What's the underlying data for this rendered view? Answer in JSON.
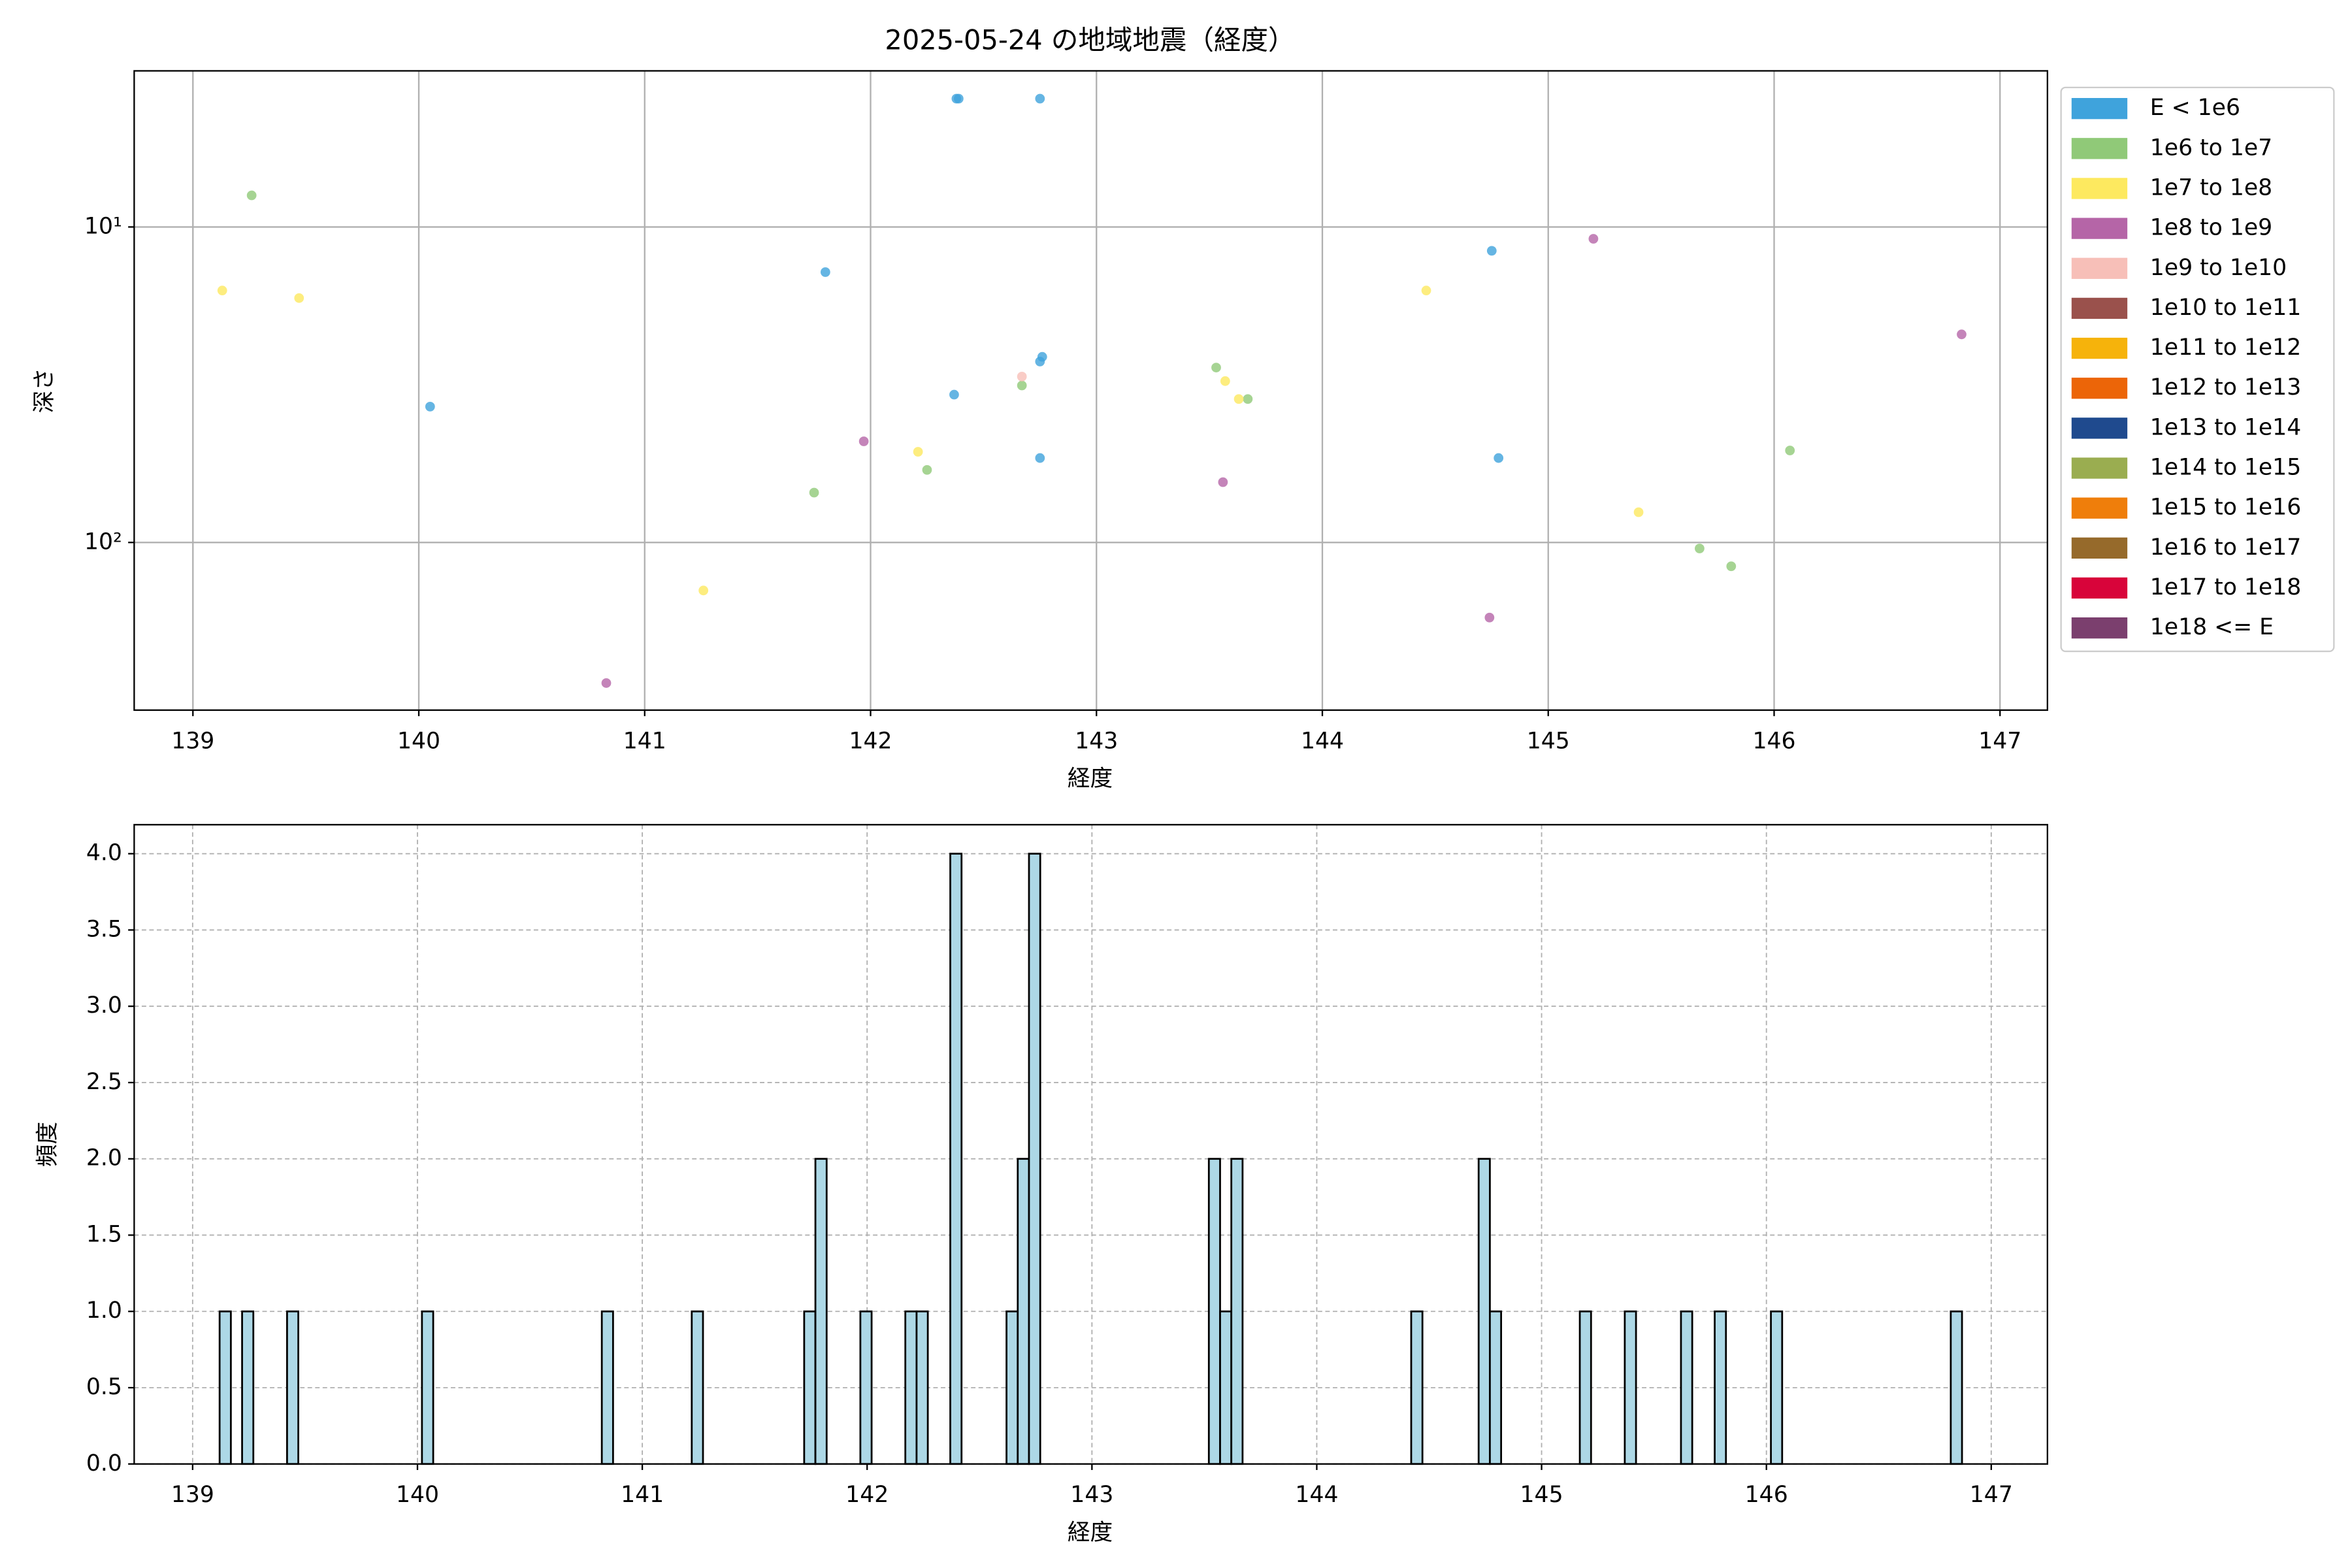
{
  "chart_data": [
    {
      "type": "scatter",
      "title": "2025-05-24 の地域地震（経度）",
      "x_label": "経度",
      "y_label": "深さ",
      "xlim": [
        138.74,
        147.21
      ],
      "ylim": [
        340,
        3.2
      ],
      "log_y": true,
      "grid": true,
      "legend": "outside-right",
      "xticks": [
        139,
        140,
        141,
        142,
        143,
        144,
        145,
        146,
        147
      ],
      "yticks": [
        {
          "value": 10,
          "label": "10¹"
        },
        {
          "value": 100,
          "label": "10²"
        }
      ],
      "series": [
        {
          "name": "E < 1e6",
          "color": "#3fa3dc",
          "x": [
            142.38,
            142.39,
            142.75,
            141.8,
            140.05,
            142.37,
            142.75,
            142.76,
            142.75,
            144.75,
            144.78
          ],
          "values": [
            3.92,
            3.92,
            3.92,
            13.9,
            37.1,
            34.0,
            26.7,
            25.8,
            54.0,
            11.9,
            54.0
          ]
        },
        {
          "name": "1e6 to 1e7",
          "color": "#90c978",
          "x": [
            139.26,
            143.53,
            142.67,
            143.67,
            141.75,
            142.25,
            146.07,
            145.67,
            145.81
          ],
          "values": [
            7.94,
            27.9,
            31.8,
            35.1,
            69.5,
            58.9,
            51.1,
            104.5,
            119
          ]
        },
        {
          "name": "1e7 to 1e8",
          "color": "#fde95f",
          "x": [
            139.13,
            139.47,
            144.46,
            143.57,
            143.63,
            142.21,
            145.4,
            141.26
          ],
          "values": [
            15.9,
            16.8,
            15.9,
            30.8,
            35.1,
            51.6,
            80.2,
            142
          ]
        },
        {
          "name": "1e8 to 1e9",
          "color": "#b565a7",
          "x": [
            145.2,
            146.83,
            141.97,
            143.56,
            144.74,
            140.83
          ],
          "values": [
            10.9,
            21.9,
            47.8,
            64.4,
            173,
            279
          ]
        },
        {
          "name": "1e9 to 1e10",
          "color": "#f7bfb8",
          "x": [
            142.67
          ],
          "values": [
            29.8
          ]
        },
        {
          "name": "1e10 to 1e11",
          "color": "#9a514c",
          "x": [],
          "values": []
        },
        {
          "name": "1e11 to 1e12",
          "color": "#f6b30b",
          "x": [],
          "values": []
        },
        {
          "name": "1e12 to 1e13",
          "color": "#ec6508",
          "x": [],
          "values": []
        },
        {
          "name": "1e13 to 1e14",
          "color": "#1f4a8e",
          "x": [],
          "values": []
        },
        {
          "name": "1e14 to 1e15",
          "color": "#9aad50",
          "x": [],
          "values": []
        },
        {
          "name": "1e15 to 1e16",
          "color": "#ef7e0b",
          "x": [],
          "values": []
        },
        {
          "name": "1e16 to 1e17",
          "color": "#966a2b",
          "x": [],
          "values": []
        },
        {
          "name": "1e17 to 1e18",
          "color": "#d8043a",
          "x": [],
          "values": []
        },
        {
          "name": "1e18 <= E",
          "color": "#7b3f6e",
          "x": [],
          "values": []
        }
      ]
    },
    {
      "type": "histogram",
      "x_label": "経度",
      "y_label": "頻度",
      "color": "#add8e6",
      "edgecolor": "#000000",
      "grid": true,
      "xlim": [
        138.74,
        147.25
      ],
      "ylim": [
        0,
        4.19
      ],
      "xticks": [
        139,
        140,
        141,
        142,
        143,
        144,
        145,
        146,
        147
      ],
      "yticks": [
        {
          "value": 0,
          "label": "0.0"
        },
        {
          "value": 0.5,
          "label": "0.5"
        },
        {
          "value": 1,
          "label": "1.0"
        },
        {
          "value": 1.5,
          "label": "1.5"
        },
        {
          "value": 2,
          "label": "2.0"
        },
        {
          "value": 2.5,
          "label": "2.5"
        },
        {
          "value": 3,
          "label": "3.0"
        },
        {
          "value": 3.5,
          "label": "3.5"
        },
        {
          "value": 4,
          "label": "4.0"
        }
      ],
      "bins": [
        139.12,
        139.17,
        139.22,
        139.27,
        139.32,
        139.37,
        139.42,
        139.47,
        139.52,
        139.57,
        139.62,
        139.67,
        139.72,
        139.77,
        139.82,
        139.87,
        139.92,
        139.97,
        140.02,
        140.07,
        140.12,
        140.17,
        140.22,
        140.27,
        140.32,
        140.37,
        140.42,
        140.47,
        140.52,
        140.57,
        140.62,
        140.67,
        140.72,
        140.77,
        140.82,
        140.87,
        140.92,
        140.97,
        141.02,
        141.07,
        141.12,
        141.17,
        141.22,
        141.27,
        141.32,
        141.37,
        141.42,
        141.47,
        141.52,
        141.57,
        141.62,
        141.67,
        141.72,
        141.77,
        141.82,
        141.87,
        141.92,
        141.97,
        142.02,
        142.07,
        142.12,
        142.17,
        142.22,
        142.27,
        142.32,
        142.37,
        142.42,
        142.47,
        142.52,
        142.57,
        142.62,
        142.67,
        142.72,
        142.77,
        142.82,
        142.87,
        142.92,
        142.97,
        143.02,
        143.07,
        143.12,
        143.17,
        143.22,
        143.27,
        143.32,
        143.37,
        143.42,
        143.47,
        143.52,
        143.57,
        143.62,
        143.67,
        143.72,
        143.77,
        143.82,
        143.87,
        143.92,
        143.97,
        144.02,
        144.07,
        144.12,
        144.17,
        144.22,
        144.27,
        144.32,
        144.37,
        144.42,
        144.47,
        144.52,
        144.57,
        144.62,
        144.67,
        144.72,
        144.77,
        144.82,
        144.87,
        144.92,
        144.97,
        145.02,
        145.07,
        145.12,
        145.17,
        145.22,
        145.27,
        145.32,
        145.37,
        145.42,
        145.47,
        145.52,
        145.57,
        145.62,
        145.67,
        145.72,
        145.77,
        145.82,
        145.87,
        145.92,
        145.97,
        146.02,
        146.07,
        146.12,
        146.17,
        146.22,
        146.27,
        146.32,
        146.37,
        146.42,
        146.47,
        146.52,
        146.57,
        146.62,
        146.67,
        146.72,
        146.77,
        146.82,
        146.87
      ],
      "values": [
        1,
        0,
        1,
        0,
        0,
        0,
        1,
        0,
        0,
        0,
        0,
        0,
        0,
        0,
        0,
        0,
        0,
        0,
        1,
        0,
        0,
        0,
        0,
        0,
        0,
        0,
        0,
        0,
        0,
        0,
        0,
        0,
        0,
        0,
        1,
        0,
        0,
        0,
        0,
        0,
        0,
        0,
        1,
        0,
        0,
        0,
        0,
        0,
        0,
        0,
        0,
        0,
        1,
        2,
        0,
        0,
        0,
        1,
        0,
        0,
        0,
        1,
        1,
        0,
        0,
        4,
        0,
        0,
        0,
        0,
        1,
        2,
        4,
        0,
        0,
        0,
        0,
        0,
        0,
        0,
        0,
        0,
        0,
        0,
        0,
        0,
        0,
        0,
        2,
        1,
        2,
        0,
        0,
        0,
        0,
        0,
        0,
        0,
        0,
        0,
        0,
        0,
        0,
        0,
        0,
        0,
        1,
        0,
        0,
        0,
        0,
        0,
        2,
        1,
        0,
        0,
        0,
        0,
        0,
        0,
        0,
        1,
        0,
        0,
        0,
        1,
        0,
        0,
        0,
        0,
        1,
        0,
        0,
        1,
        0,
        0,
        0,
        0,
        1,
        0,
        0,
        0,
        0,
        0,
        0,
        0,
        0,
        0,
        0,
        0,
        0,
        0,
        0,
        0,
        1
      ]
    }
  ]
}
